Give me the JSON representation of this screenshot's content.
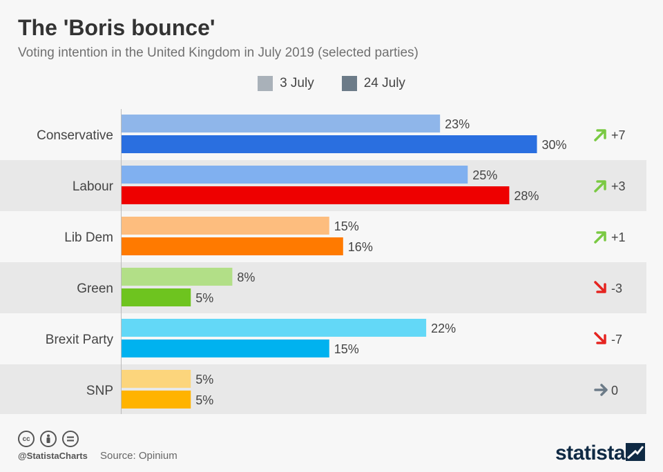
{
  "title": "The 'Boris bounce'",
  "subtitle": "Voting intention in the United Kingdom in July 2019 (selected parties)",
  "legend": [
    {
      "label": "3 July",
      "color": "#a9b1b9"
    },
    {
      "label": "24 July",
      "color": "#6c7b88"
    }
  ],
  "footer": {
    "handle": "@StatistaCharts",
    "source": "Source: Opinium",
    "brand": "statista",
    "license_icons": [
      "cc-icon",
      "person-icon",
      "equals-icon"
    ]
  },
  "chart_data": {
    "type": "bar",
    "orientation": "horizontal",
    "title": "The 'Boris bounce'",
    "subtitle": "Voting intention in the United Kingdom in July 2019 (selected parties)",
    "categories": [
      "Conservative",
      "Labour",
      "Lib Dem",
      "Green",
      "Brexit Party",
      "SNP"
    ],
    "series": [
      {
        "name": "3 July",
        "values": [
          23,
          25,
          15,
          8,
          22,
          5
        ],
        "labels": [
          "23%",
          "25%",
          "15%",
          "8%",
          "22%",
          "5%"
        ]
      },
      {
        "name": "24 July",
        "values": [
          30,
          28,
          16,
          5,
          15,
          5
        ],
        "labels": [
          "30%",
          "28%",
          "16%",
          "5%",
          "15%",
          "5%"
        ]
      }
    ],
    "colors_3_july": [
      "#8fb6ea",
      "#80b0f0",
      "#fdbd7e",
      "#b2df87",
      "#63d8f7",
      "#fcd57c"
    ],
    "colors_24_july": [
      "#2a6fe0",
      "#ee0000",
      "#ff7a00",
      "#6ec41f",
      "#00b2ef",
      "#ffb300"
    ],
    "changes": [
      {
        "label": "+7",
        "direction": "up",
        "icon": "arrow-up-right-icon",
        "color": "#7ac943"
      },
      {
        "label": "+3",
        "direction": "up",
        "icon": "arrow-up-right-icon",
        "color": "#7ac943"
      },
      {
        "label": "+1",
        "direction": "up",
        "icon": "arrow-up-right-icon",
        "color": "#7ac943"
      },
      {
        "label": "-3",
        "direction": "down",
        "icon": "arrow-down-right-icon",
        "color": "#e52420"
      },
      {
        "label": "-7",
        "direction": "down",
        "icon": "arrow-down-right-icon",
        "color": "#e52420"
      },
      {
        "label": "0",
        "direction": "flat",
        "icon": "arrow-right-icon",
        "color": "#6c7b88"
      }
    ],
    "row_shading": "alternating",
    "legend_position": "top-center",
    "grid": false,
    "xlim": [
      0,
      30
    ]
  }
}
